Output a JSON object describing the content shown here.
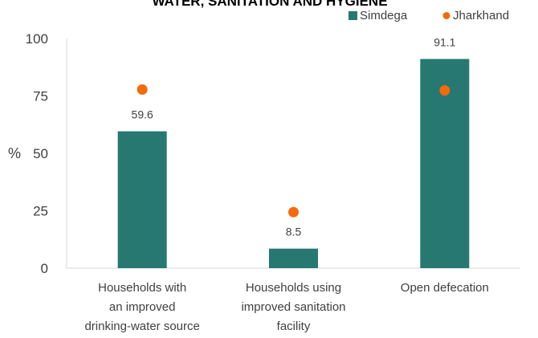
{
  "chart_data": {
    "type": "bar",
    "title": "WATER, SANITATION AND HYGIENE",
    "ylabel": "%",
    "ylim": [
      0,
      100
    ],
    "yticks": [
      0,
      25,
      50,
      75,
      100
    ],
    "grid": false,
    "legend_position": "top-right",
    "categories": [
      [
        "Households with",
        "an improved",
        "drinking-water source"
      ],
      [
        "Households using",
        "improved sanitation",
        "facility"
      ],
      [
        "Open defecation"
      ]
    ],
    "series": [
      {
        "name": "Simdega",
        "kind": "bar",
        "color": "#267871",
        "values": [
          59.6,
          8.5,
          91.1
        ],
        "labels": [
          "59.6",
          "8.5",
          "91.1"
        ]
      },
      {
        "name": "Jharkhand",
        "kind": "marker",
        "color": "#F46A0C",
        "values": [
          77.8,
          24.4,
          77.4
        ]
      }
    ]
  }
}
